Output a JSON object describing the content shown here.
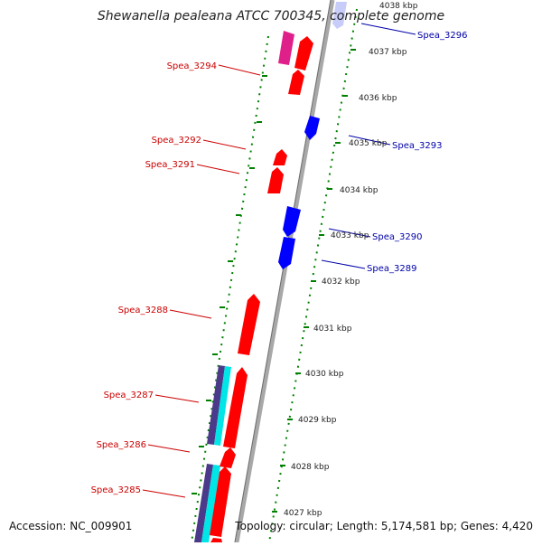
{
  "title": "Shewanella pealeana ATCC 700345, complete genome",
  "footer": {
    "accession": "Accession: NC_009901",
    "summary": "Topology: circular; Length: 5,174,581 bp; Genes: 4,420"
  },
  "colors": {
    "forward_gene": "#ff0000",
    "reverse_gene": "#0000ff",
    "rna_gene": "#e0208a",
    "other_feature": "#00e5e5",
    "other_feature_dark": "#4b3a8a",
    "backbone": "#a8a8a8",
    "tick_marks": "#008000",
    "forward_label": "#cc0000",
    "reverse_label": "#0000aa"
  },
  "scale_labels": [
    "4038 kbp",
    "4037 kbp",
    "4036 kbp",
    "4035 kbp",
    "4034 kbp",
    "4033 kbp",
    "4032 kbp",
    "4031 kbp",
    "4030 kbp",
    "4029 kbp",
    "4028 kbp",
    "4027 kbp"
  ],
  "gene_labels": {
    "forward": [
      "Spea_3294",
      "Spea_3292",
      "Spea_3291",
      "Spea_3288",
      "Spea_3287",
      "Spea_3286",
      "Spea_3285"
    ],
    "reverse": [
      "Spea_3296",
      "Spea_3293",
      "Spea_3290",
      "Spea_3289"
    ]
  }
}
